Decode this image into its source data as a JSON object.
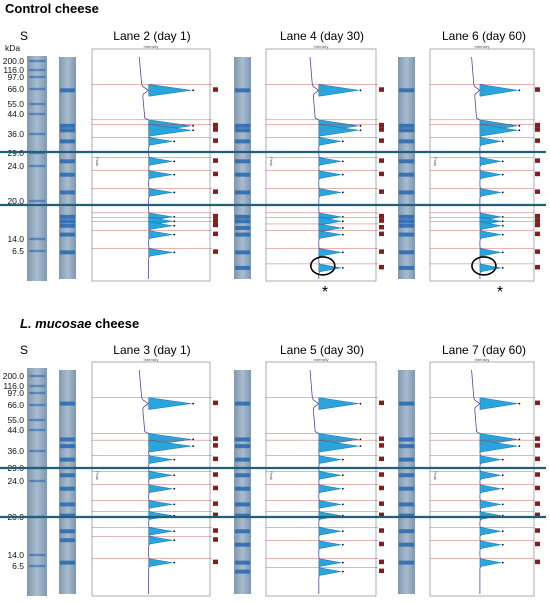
{
  "sections": [
    {
      "title_italic": "",
      "title_rest": "Control cheese",
      "lanes": [
        {
          "title": "Lane 2 (day 1)",
          "peaks": [
            0.15,
            0.31,
            0.33,
            0.38,
            0.47,
            0.53,
            0.61,
            0.72,
            0.74,
            0.76,
            0.8,
            0.88
          ],
          "marked_peak": null
        },
        {
          "title": "Lane 4 (day 30)",
          "peaks": [
            0.15,
            0.31,
            0.33,
            0.38,
            0.47,
            0.53,
            0.61,
            0.72,
            0.74,
            0.77,
            0.8,
            0.88,
            0.95
          ],
          "marked_peak": 0.95
        },
        {
          "title": "Lane 6 (day 60)",
          "peaks": [
            0.15,
            0.31,
            0.33,
            0.38,
            0.47,
            0.53,
            0.61,
            0.72,
            0.74,
            0.76,
            0.8,
            0.88,
            0.95
          ],
          "marked_peak": 0.95
        }
      ]
    },
    {
      "title_italic": "L. mucosae",
      "title_rest": " cheese",
      "lanes": [
        {
          "title": "Lane 3 (day 1)",
          "peaks": [
            0.15,
            0.31,
            0.34,
            0.4,
            0.47,
            0.53,
            0.6,
            0.65,
            0.72,
            0.76,
            0.86
          ],
          "marked_peak": null
        },
        {
          "title": "Lane 5 (day 30)",
          "peaks": [
            0.15,
            0.31,
            0.34,
            0.4,
            0.47,
            0.53,
            0.6,
            0.65,
            0.72,
            0.78,
            0.86,
            0.9
          ],
          "marked_peak": null
        },
        {
          "title": "Lane 7 (day 60)",
          "peaks": [
            0.15,
            0.31,
            0.34,
            0.4,
            0.47,
            0.53,
            0.6,
            0.65,
            0.72,
            0.78,
            0.86
          ],
          "marked_peak": null
        }
      ]
    }
  ],
  "standard_label": "S",
  "kda_unit": "kDa",
  "markers": [
    "200.0",
    "116.0",
    "97.0",
    "66.0",
    "55.0",
    "44.0",
    "36.0",
    "29.0",
    "24.0",
    "20.0",
    "14.0",
    "6.5"
  ],
  "plot_axis_label": "Intensity",
  "track_label": "Peak",
  "star_symbol": "*",
  "colors": {
    "peak_fill": "#2aa5dc",
    "peak_edge": "#1a6fa8",
    "divider_line": "#1f5f7a",
    "gel_bg": "#8fa7bf",
    "band": "#1e63b0",
    "marker_box": "#8b1a1a"
  }
}
